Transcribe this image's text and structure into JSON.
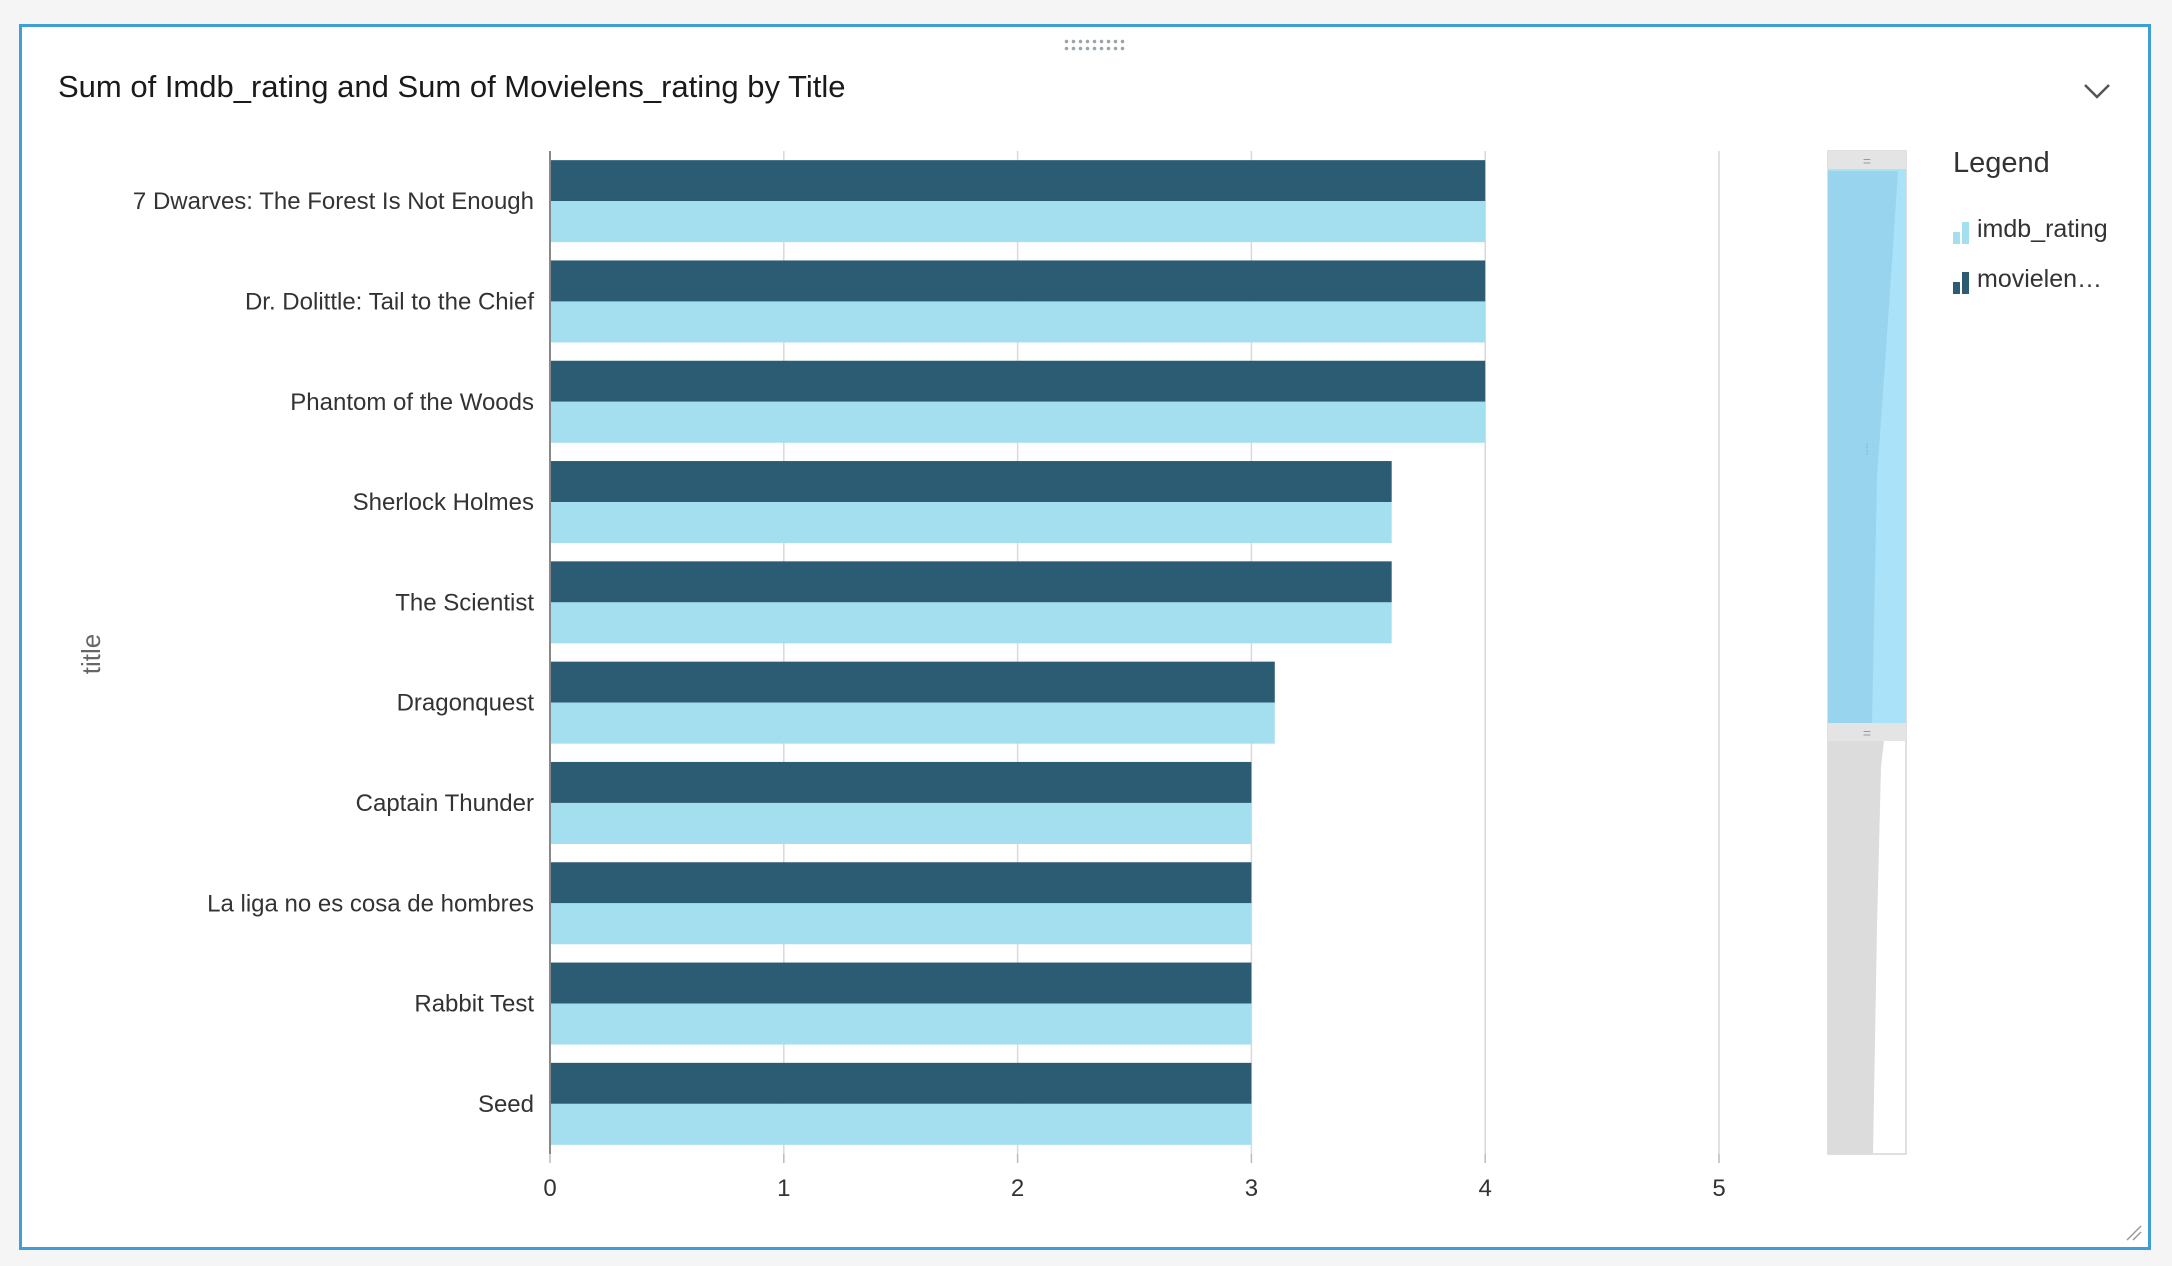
{
  "panel": {
    "title": "Sum of Imdb_rating and Sum of Movielens_rating by Title",
    "menu_icon": "chevron-down-icon",
    "drag_icon": "drag-handle-icon",
    "resize_icon": "resize-corner-icon"
  },
  "legend": {
    "title": "Legend",
    "items": [
      {
        "label": "imdb_rating",
        "color": "#a4dff0"
      },
      {
        "label": "movielen…",
        "color": "#2b5c73"
      }
    ]
  },
  "colors": {
    "imdb": "#a4dff0",
    "movielens": "#2b5c73",
    "border": "#3d9fd6",
    "grid": "#d9d9d9"
  },
  "chart_data": {
    "type": "bar",
    "orientation": "horizontal",
    "title": "Sum of Imdb_rating and Sum of Movielens_rating by Title",
    "ylabel": "title",
    "xlabel": "",
    "xlim": [
      0,
      5
    ],
    "x_ticks": [
      0,
      1,
      2,
      3,
      4,
      5
    ],
    "grid": true,
    "legend_position": "right",
    "categories": [
      "7 Dwarves: The Forest Is Not Enough",
      "Dr. Dolittle: Tail to the Chief",
      "Phantom of the Woods",
      "Sherlock Holmes",
      "The Scientist",
      "Dragonquest",
      "Captain Thunder",
      "La liga no es cosa de hombres",
      "Rabbit Test",
      "Seed"
    ],
    "series": [
      {
        "name": "movielens_rating",
        "values": [
          4,
          4,
          4,
          3.6,
          3.6,
          3.1,
          3,
          3,
          3,
          3
        ]
      },
      {
        "name": "imdb_rating",
        "values": [
          4,
          4,
          4,
          3.6,
          3.6,
          3.1,
          3,
          3,
          3,
          3
        ]
      }
    ]
  }
}
